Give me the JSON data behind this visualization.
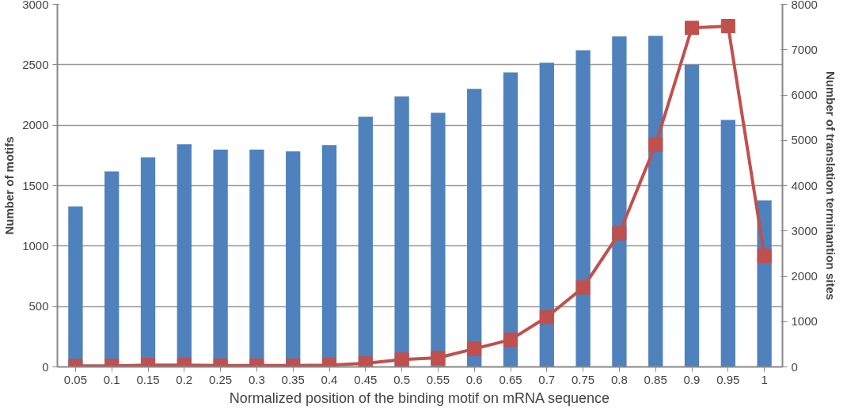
{
  "chart_data": {
    "type": "bar",
    "xlabel": "Normalized position of the binding motif on mRNA sequence",
    "ylabel": "Number of motifs",
    "y2label": "Number of translation terminantion sites",
    "categories": [
      "0.05",
      "0.1",
      "0.15",
      "0.2",
      "0.25",
      "0.3",
      "0.35",
      "0.4",
      "0.45",
      "0.5",
      "0.55",
      "0.6",
      "0.65",
      "0.7",
      "0.75",
      "0.8",
      "0.85",
      "0.9",
      "0.95",
      "1"
    ],
    "series": [
      {
        "color": "#4f81bd",
        "values": [
          1328,
          1618,
          1734,
          1842,
          1798,
          1798,
          1783,
          1835,
          2070,
          2238,
          2103,
          2300,
          2437,
          2517,
          2620,
          2734,
          2739,
          2501,
          2044,
          1377
        ]
      },
      {
        "type": "line",
        "axis": "y2",
        "color": "#c0504d",
        "marker": "square",
        "values": [
          20,
          20,
          40,
          40,
          30,
          30,
          30,
          40,
          80,
          160,
          200,
          400,
          600,
          1100,
          1750,
          2950,
          4900,
          7480,
          7520,
          2450
        ]
      }
    ],
    "ylim": [
      0,
      3000
    ],
    "yticks": [
      0,
      500,
      1000,
      1500,
      2000,
      2500,
      3000
    ],
    "y2lim": [
      0,
      8000
    ],
    "y2ticks": [
      0,
      1000,
      2000,
      3000,
      4000,
      5000,
      6000,
      7000,
      8000
    ],
    "grid": "y"
  }
}
